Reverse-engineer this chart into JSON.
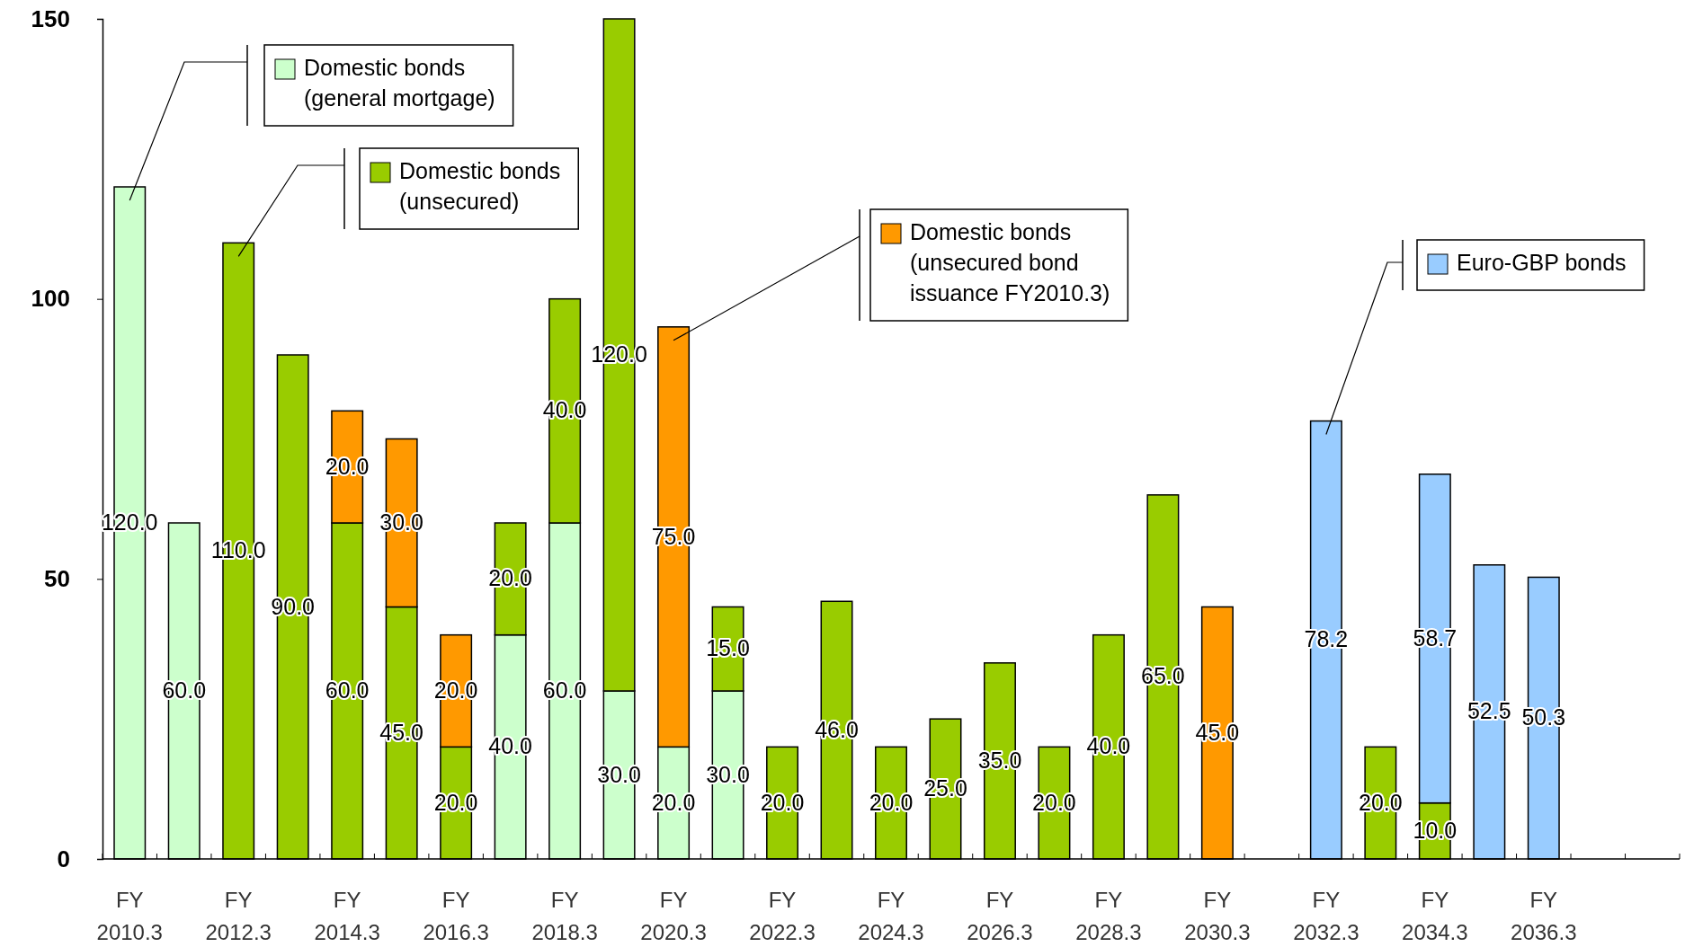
{
  "chart_data": {
    "type": "bar",
    "stacked": true,
    "categories": [
      "FY 2010.3",
      null,
      "FY 2012.3",
      null,
      "FY 2014.3",
      null,
      "FY 2016.3",
      null,
      "FY 2018.3",
      null,
      "FY 2020.3",
      null,
      "FY 2022.3",
      null,
      "FY 2024.3",
      null,
      "FY 2026.3",
      null,
      "FY 2028.3",
      null,
      "FY 2030.3",
      null,
      "FY 2032.3",
      null,
      "FY 2034.3",
      null,
      "FY 2036.3",
      null,
      null
    ],
    "series": [
      {
        "name": "Domestic bonds (general mortgage)",
        "color": "#ccffcc",
        "values": [
          120,
          60,
          null,
          null,
          null,
          null,
          null,
          40,
          60,
          30,
          20,
          30,
          null,
          null,
          null,
          null,
          null,
          null,
          null,
          null,
          null,
          null,
          null,
          null,
          null,
          null,
          null,
          null,
          null
        ],
        "value_labels": [
          "120.0",
          "60.0",
          null,
          null,
          null,
          null,
          null,
          "40.0",
          "60.0",
          "30.0",
          "20.0",
          "30.0",
          null,
          null,
          null,
          null,
          null,
          null,
          null,
          null,
          null,
          null,
          null,
          null,
          null,
          null,
          null,
          null,
          null
        ]
      },
      {
        "name": "Domestic bonds (unsecured)",
        "color": "#99cc00",
        "values": [
          null,
          null,
          110,
          90,
          60,
          45,
          20,
          20,
          40,
          120,
          null,
          15,
          20,
          46,
          20,
          25,
          35,
          20,
          40,
          65,
          null,
          null,
          null,
          20,
          10,
          null,
          null,
          null,
          null
        ],
        "value_labels": [
          null,
          null,
          "110.0",
          "90.0",
          "60.0",
          "45.0",
          "20.0",
          "20.0",
          "40.0",
          "120.0",
          null,
          "15.0",
          "20.0",
          "46.0",
          "20.0",
          "25.0",
          "35.0",
          "20.0",
          "40.0",
          "65.0",
          null,
          null,
          null,
          "20.0",
          "10.0",
          null,
          null,
          null,
          null
        ]
      },
      {
        "name": "Domestic bonds (unsecured bond issuance FY2010.3)",
        "color": "#ff9900",
        "values": [
          null,
          null,
          null,
          null,
          20,
          30,
          20,
          null,
          null,
          null,
          75,
          null,
          null,
          null,
          null,
          null,
          null,
          null,
          null,
          null,
          45,
          null,
          null,
          null,
          null,
          null,
          null,
          null,
          null
        ],
        "value_labels": [
          null,
          null,
          null,
          null,
          "20.0",
          "30.0",
          "20.0",
          null,
          null,
          null,
          "75.0",
          null,
          null,
          null,
          null,
          null,
          null,
          null,
          null,
          null,
          "45.0",
          null,
          null,
          null,
          null,
          null,
          null,
          null,
          null
        ]
      },
      {
        "name": "Euro-GBP bonds",
        "color": "#99ccff",
        "values": [
          null,
          null,
          null,
          null,
          null,
          null,
          null,
          null,
          null,
          null,
          null,
          null,
          null,
          null,
          null,
          null,
          null,
          null,
          null,
          null,
          null,
          null,
          78.2,
          null,
          58.7,
          52.5,
          50.3,
          null,
          null
        ],
        "value_labels": [
          null,
          null,
          null,
          null,
          null,
          null,
          null,
          null,
          null,
          null,
          null,
          null,
          null,
          null,
          null,
          null,
          null,
          null,
          null,
          null,
          null,
          null,
          "78.2",
          null,
          "58.7",
          "52.5",
          "50.3",
          null,
          null
        ]
      }
    ],
    "ylim": [
      0,
      150
    ],
    "yticks": [
      0,
      50,
      100,
      150
    ],
    "grid": false,
    "legend": "top"
  }
}
